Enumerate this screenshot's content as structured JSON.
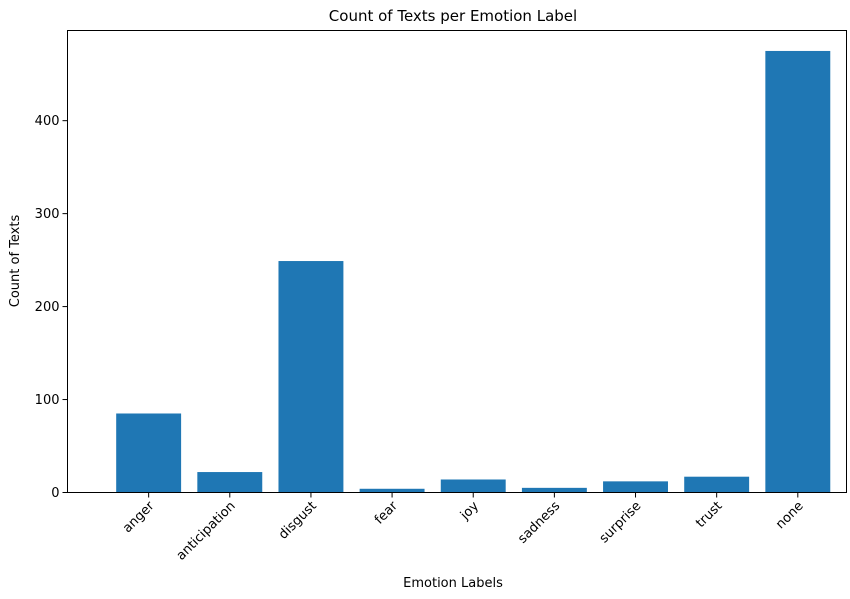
{
  "chart_data": {
    "type": "bar",
    "title": "Count of Texts per Emotion Label",
    "xlabel": "Emotion Labels",
    "ylabel": "Count of Texts",
    "categories": [
      "anger",
      "anticipation",
      "disgust",
      "fear",
      "joy",
      "sadness",
      "surprise",
      "trust",
      "none"
    ],
    "values": [
      85,
      22,
      249,
      4,
      14,
      5,
      12,
      17,
      475
    ],
    "ylim": [
      0,
      497
    ],
    "yticks": [
      0,
      100,
      200,
      300,
      400
    ],
    "grid": false,
    "legend": "none",
    "bar_color": "#1f77b4",
    "xtick_rotation": 45
  }
}
